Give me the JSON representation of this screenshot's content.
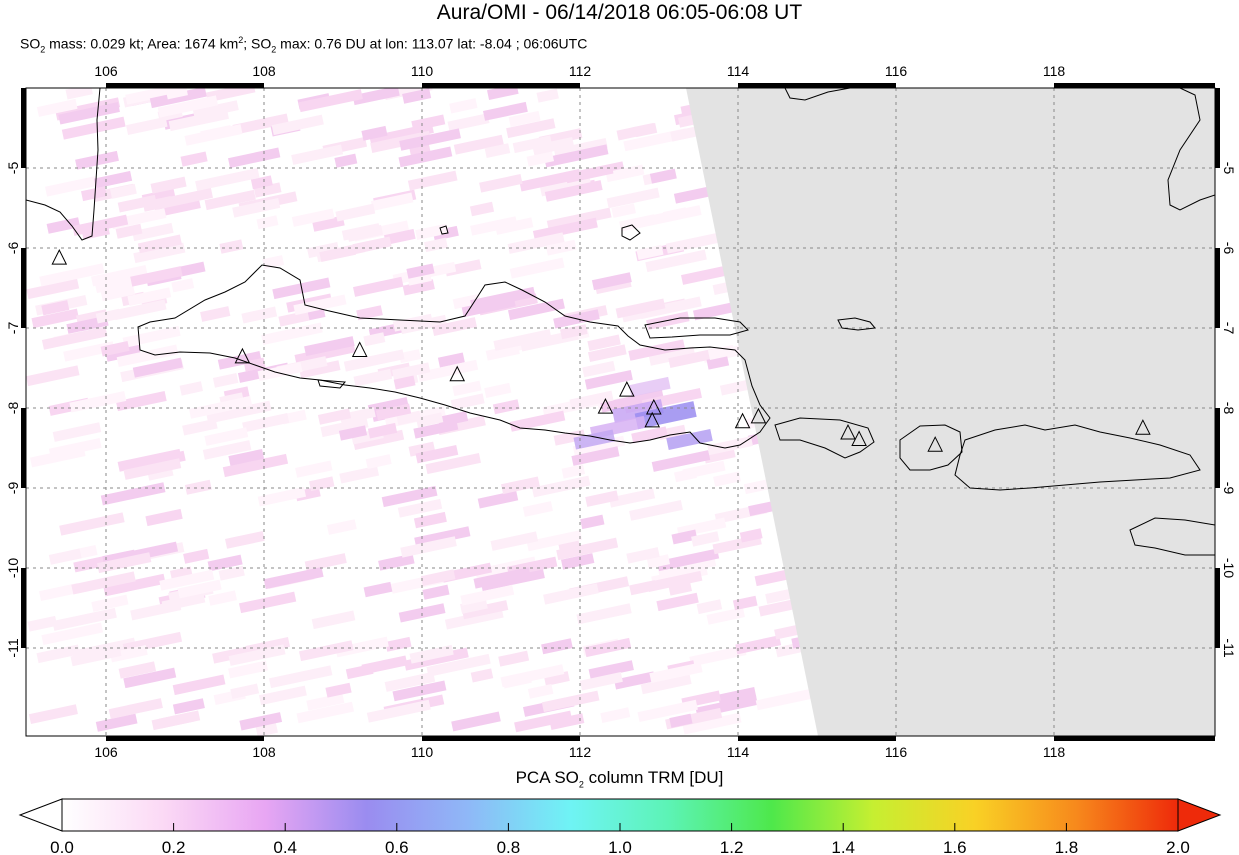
{
  "title": "Aura/OMI - 06/14/2018 06:05-06:08 UT",
  "subtitle": {
    "mass_label": "SO",
    "mass_sub": "2",
    "mass_text": " mass: 0.029 kt; Area: 1674 km",
    "area_sup": "2",
    "sep": "; SO",
    "max_sub": "2",
    "max_text": " max: 0.76 DU at lon: 113.07 lat: -8.04 ; 06:06UTC"
  },
  "map": {
    "lon_ticks": [
      "106",
      "108",
      "110",
      "112",
      "114",
      "116",
      "118"
    ],
    "lat_ticks": [
      "-5",
      "-6",
      "-7",
      "-8",
      "-9",
      "-10",
      "-11"
    ],
    "lon_range": [
      105.0,
      120.0
    ],
    "lat_range": [
      -12.0,
      -4.0
    ],
    "no_data_region": "east of swath edge (grey)",
    "volcano_icon": "triangle-icon",
    "volcanoes": [
      {
        "lon": 105.42,
        "lat": -6.1
      },
      {
        "lon": 107.73,
        "lat": -7.32
      },
      {
        "lon": 109.21,
        "lat": -7.24
      },
      {
        "lon": 110.44,
        "lat": -7.54
      },
      {
        "lon": 112.31,
        "lat": -7.94
      },
      {
        "lon": 112.58,
        "lat": -7.73
      },
      {
        "lon": 112.92,
        "lat": -7.95
      },
      {
        "lon": 112.9,
        "lat": -8.11
      },
      {
        "lon": 114.04,
        "lat": -8.12
      },
      {
        "lon": 114.24,
        "lat": -8.06
      },
      {
        "lon": 115.37,
        "lat": -8.26
      },
      {
        "lon": 115.51,
        "lat": -8.34
      },
      {
        "lon": 116.47,
        "lat": -8.41
      },
      {
        "lon": 119.09,
        "lat": -8.2
      }
    ],
    "so2_peak": {
      "value_du": 0.76,
      "lon": 113.07,
      "lat": -8.04
    }
  },
  "colorbar": {
    "title_prefix": "PCA SO",
    "title_sub": "2",
    "title_suffix": " column TRM [DU]",
    "tick_labels": [
      "0.0",
      "0.2",
      "0.4",
      "0.6",
      "0.8",
      "1.0",
      "1.2",
      "1.4",
      "1.6",
      "1.8",
      "2.0"
    ],
    "range": [
      0.0,
      2.0
    ],
    "colors": [
      "#ffffff",
      "#fbd9f5",
      "#e8a6f3",
      "#9a8cf0",
      "#8fb8f7",
      "#6ff3f5",
      "#5cf3b4",
      "#4ee84b",
      "#c6ef31",
      "#f9d125",
      "#f7891c",
      "#ee2a0a"
    ]
  }
}
